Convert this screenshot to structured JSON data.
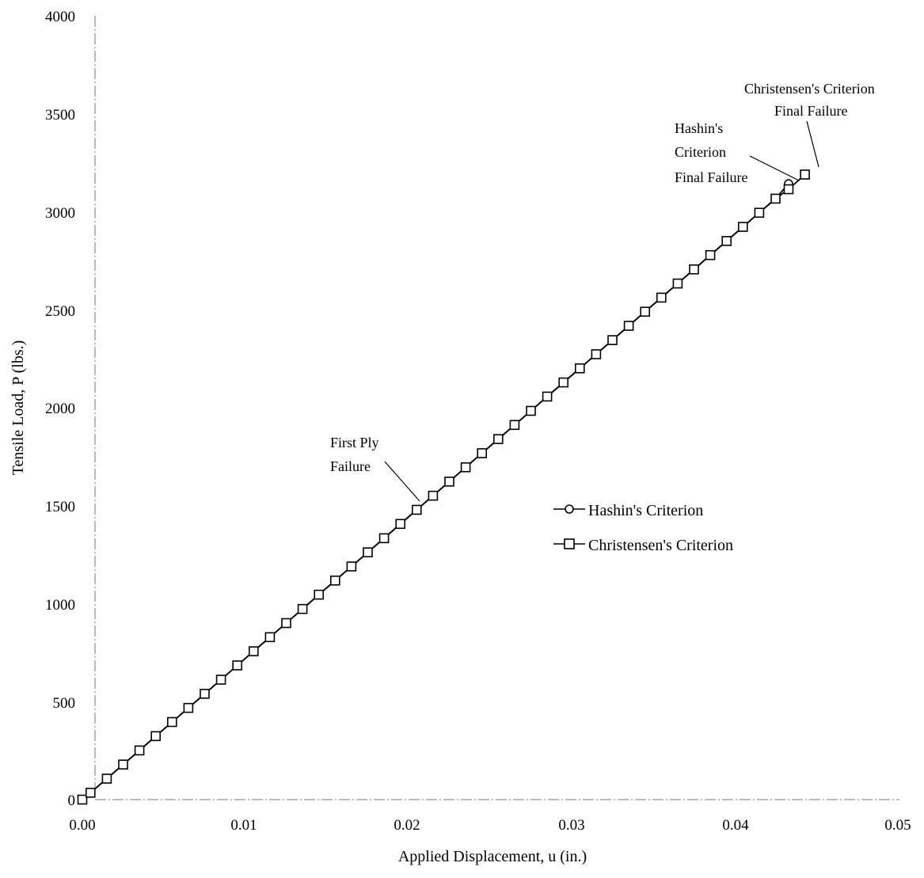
{
  "chart_data": {
    "type": "line",
    "xlabel": "Applied Displacement, u (in.)",
    "ylabel": "Tensile Load, P (lbs.)",
    "xlim": [
      0,
      0.05
    ],
    "ylim": [
      0,
      4000
    ],
    "x_ticks": [
      "0.00",
      "0.01",
      "0.02",
      "0.03",
      "0.04",
      "0.05"
    ],
    "y_ticks": [
      "0",
      "500",
      "1000",
      "1500",
      "2000",
      "2500",
      "3000",
      "3500",
      "4000"
    ],
    "grid": false,
    "legend_position": "center-right",
    "series": [
      {
        "name": "Hashin's Criterion",
        "marker": "circle",
        "color": "#000000",
        "x": [
          0,
          0.0005,
          0.0015,
          0.0025,
          0.0035,
          0.0045,
          0.0055,
          0.0065,
          0.0075,
          0.0085,
          0.0095,
          0.0105,
          0.0115,
          0.0125,
          0.0135,
          0.0145,
          0.0155,
          0.0165,
          0.0175,
          0.0185,
          0.0195,
          0.0205,
          0.0215,
          0.0225,
          0.0235,
          0.0245,
          0.0255,
          0.0265,
          0.0275,
          0.0285,
          0.0295,
          0.0305,
          0.0315,
          0.0325,
          0.0335,
          0.0345,
          0.0355,
          0.0365,
          0.0375,
          0.0385,
          0.0395,
          0.0405,
          0.0415,
          0.0425,
          0.0433
        ],
        "y": [
          0,
          35,
          107,
          179,
          251,
          324,
          396,
          468,
          540,
          612,
          685,
          757,
          829,
          901,
          973,
          1046,
          1118,
          1190,
          1262,
          1334,
          1407,
          1479,
          1551,
          1623,
          1696,
          1768,
          1840,
          1912,
          1984,
          2057,
          2129,
          2201,
          2273,
          2345,
          2418,
          2490,
          2562,
          2634,
          2706,
          2779,
          2851,
          2923,
          2995,
          3067,
          3143
        ]
      },
      {
        "name": "Christensen's Criterion",
        "marker": "square",
        "color": "#000000",
        "x": [
          0,
          0.0005,
          0.0015,
          0.0025,
          0.0035,
          0.0045,
          0.0055,
          0.0065,
          0.0075,
          0.0085,
          0.0095,
          0.0105,
          0.0115,
          0.0125,
          0.0135,
          0.0145,
          0.0155,
          0.0165,
          0.0175,
          0.0185,
          0.0195,
          0.0205,
          0.0215,
          0.0225,
          0.0235,
          0.0245,
          0.0255,
          0.0265,
          0.0275,
          0.0285,
          0.0295,
          0.0305,
          0.0315,
          0.0325,
          0.0335,
          0.0345,
          0.0355,
          0.0365,
          0.0375,
          0.0385,
          0.0395,
          0.0405,
          0.0415,
          0.0425,
          0.0433,
          0.0443
        ],
        "y": [
          0,
          35,
          107,
          179,
          251,
          324,
          396,
          468,
          540,
          612,
          685,
          757,
          829,
          901,
          973,
          1046,
          1118,
          1190,
          1262,
          1334,
          1407,
          1479,
          1551,
          1623,
          1696,
          1768,
          1840,
          1912,
          1984,
          2057,
          2129,
          2201,
          2273,
          2345,
          2418,
          2490,
          2562,
          2634,
          2706,
          2779,
          2851,
          2923,
          2995,
          3067,
          3115,
          3190
        ]
      }
    ],
    "annotations": [
      {
        "lines": [
          "First Ply",
          "Failure"
        ],
        "point": [
          0.0205,
          1479
        ]
      },
      {
        "lines": [
          "Hashin's",
          "Criterion",
          "Final Failure"
        ],
        "point": [
          0.0433,
          3143
        ]
      },
      {
        "lines": [
          "Christensen's Criterion",
          "Final Failure"
        ],
        "point": [
          0.0443,
          3190
        ]
      }
    ]
  }
}
